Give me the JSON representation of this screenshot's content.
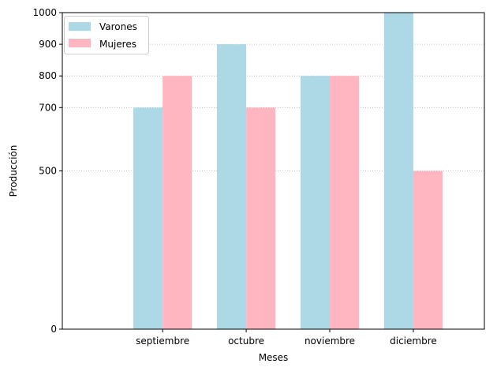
{
  "chart_data": {
    "type": "bar",
    "title": "",
    "xlabel": "Meses",
    "ylabel": "Producción",
    "categories": [
      "septiembre",
      "octubre",
      "noviembre",
      "diciembre"
    ],
    "series": [
      {
        "name": "Varones",
        "values": [
          700,
          900,
          800,
          1000
        ],
        "color": "#add8e6"
      },
      {
        "name": "Mujeres",
        "values": [
          800,
          700,
          800,
          500
        ],
        "color": "#ffb6c1"
      }
    ],
    "ylim": [
      0,
      1000
    ],
    "yticks": [
      0,
      500,
      700,
      800,
      900,
      1000
    ],
    "ytick_labels": [
      "0",
      "500",
      "700",
      "800",
      "900",
      "1000"
    ],
    "grid": "y-dotted",
    "legend_position": "top-left"
  }
}
